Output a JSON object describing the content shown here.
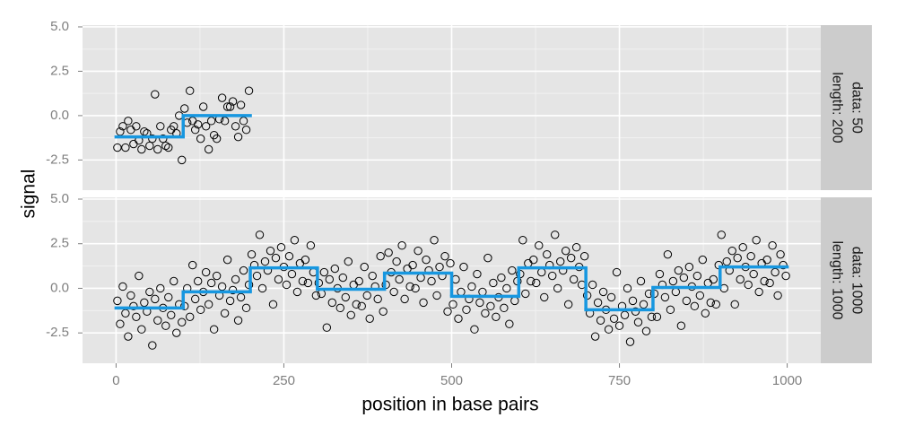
{
  "chart_data": {
    "type": "scatter",
    "xlabel": "position in base pairs",
    "ylabel": "signal",
    "xlim": [
      -50,
      1050
    ],
    "xticks": [
      0,
      250,
      500,
      750,
      1000
    ],
    "ylim": [
      -4.2,
      5.1
    ],
    "yticks": [
      {
        "value": -2.5,
        "label": "-2.5"
      },
      {
        "value": 0,
        "label": "0.0"
      },
      {
        "value": 2.5,
        "label": "2.5"
      },
      {
        "value": 5,
        "label": "5.0"
      }
    ],
    "grid": true,
    "point_color": "#000000",
    "panels": [
      {
        "label": [
          "data: 50",
          "length: 200"
        ],
        "x": [
          2,
          6,
          10,
          14,
          18,
          22,
          26,
          30,
          34,
          38,
          42,
          46,
          50,
          54,
          58,
          62,
          66,
          70,
          74,
          78,
          82,
          86,
          90,
          94,
          98,
          102,
          106,
          110,
          114,
          118,
          122,
          126,
          130,
          134,
          138,
          142,
          146,
          150,
          154,
          158,
          162,
          166,
          170,
          174,
          178,
          182,
          186,
          190,
          194,
          198
        ],
        "values": [
          -1.8,
          -0.9,
          -0.6,
          -1.8,
          -0.3,
          -0.8,
          -1.6,
          -0.6,
          -1.4,
          -1.9,
          -0.9,
          -1.0,
          -1.7,
          -1.3,
          1.2,
          -1.9,
          -0.6,
          -1.3,
          -1.7,
          -1.8,
          -0.8,
          -0.6,
          -1.0,
          0.0,
          -2.5,
          0.4,
          -0.4,
          1.4,
          -0.3,
          -0.8,
          -0.5,
          -1.3,
          0.5,
          -0.6,
          -1.9,
          -0.3,
          -1.1,
          -1.3,
          -0.2,
          1.0,
          -0.3,
          0.5,
          0.5,
          0.8,
          -0.6,
          -1.2,
          0.6,
          -0.3,
          -0.8,
          1.4
        ],
        "steps": {
          "color": "#1797e0",
          "start": [
            0,
            100
          ],
          "end": [
            100,
            200
          ],
          "values": [
            -1.2,
            0.0
          ]
        }
      },
      {
        "label": [
          "data: 1000",
          "length: 1000"
        ],
        "x": [
          2,
          6,
          10,
          14,
          18,
          22,
          26,
          30,
          34,
          38,
          42,
          46,
          50,
          54,
          58,
          62,
          66,
          70,
          74,
          78,
          82,
          86,
          90,
          94,
          98,
          102,
          106,
          110,
          114,
          118,
          122,
          126,
          130,
          134,
          138,
          142,
          146,
          150,
          154,
          158,
          162,
          166,
          170,
          174,
          178,
          182,
          186,
          190,
          194,
          198,
          202,
          206,
          210,
          214,
          218,
          222,
          226,
          230,
          234,
          238,
          242,
          246,
          250,
          254,
          258,
          262,
          266,
          270,
          274,
          278,
          282,
          286,
          290,
          294,
          298,
          302,
          306,
          310,
          314,
          318,
          322,
          326,
          330,
          334,
          338,
          342,
          346,
          350,
          354,
          358,
          362,
          366,
          370,
          374,
          378,
          382,
          386,
          390,
          394,
          398,
          402,
          406,
          410,
          414,
          418,
          422,
          426,
          430,
          434,
          438,
          442,
          446,
          450,
          454,
          458,
          462,
          466,
          470,
          474,
          478,
          482,
          486,
          490,
          494,
          498,
          502,
          506,
          510,
          514,
          518,
          522,
          526,
          530,
          534,
          538,
          542,
          546,
          550,
          554,
          558,
          562,
          566,
          570,
          574,
          578,
          582,
          586,
          590,
          594,
          598,
          602,
          606,
          610,
          614,
          618,
          622,
          626,
          630,
          634,
          638,
          642,
          646,
          650,
          654,
          658,
          662,
          666,
          670,
          674,
          678,
          682,
          686,
          690,
          694,
          698,
          702,
          706,
          710,
          714,
          718,
          722,
          726,
          730,
          734,
          738,
          742,
          746,
          750,
          754,
          758,
          762,
          766,
          770,
          774,
          778,
          782,
          786,
          790,
          794,
          798,
          802,
          806,
          810,
          814,
          818,
          822,
          826,
          830,
          834,
          838,
          842,
          846,
          850,
          854,
          858,
          862,
          866,
          870,
          874,
          878,
          882,
          886,
          890,
          894,
          898,
          902,
          906,
          910,
          914,
          918,
          922,
          926,
          930,
          934,
          938,
          942,
          946,
          950,
          954,
          958,
          962,
          966,
          970,
          974,
          978,
          982,
          986,
          990,
          994,
          998
        ],
        "values": [
          -0.7,
          -2.0,
          0.1,
          -1.4,
          -2.7,
          -0.4,
          -1.0,
          -1.6,
          0.7,
          -2.3,
          -0.8,
          -1.3,
          -0.2,
          -3.2,
          -0.6,
          -1.8,
          0.0,
          -1.1,
          -2.1,
          -0.5,
          -1.5,
          0.4,
          -2.5,
          -0.9,
          -1.9,
          -1.0,
          0.0,
          -1.6,
          1.3,
          -0.6,
          0.4,
          -1.2,
          -0.2,
          0.9,
          -0.9,
          0.3,
          -2.3,
          0.7,
          -0.4,
          0.1,
          -1.4,
          1.6,
          -0.7,
          -0.1,
          0.5,
          -1.8,
          -0.5,
          1.0,
          -1.1,
          0.2,
          1.9,
          1.3,
          0.7,
          3.0,
          0.0,
          1.5,
          1.0,
          2.1,
          -0.9,
          1.7,
          0.5,
          2.3,
          1.2,
          0.2,
          1.8,
          0.8,
          2.7,
          -0.2,
          1.4,
          0.4,
          1.6,
          0.3,
          2.4,
          0.9,
          -0.4,
          0.3,
          -0.3,
          0.9,
          -2.2,
          0.5,
          -0.8,
          1.1,
          0.0,
          -1.1,
          0.6,
          -0.5,
          1.5,
          -1.5,
          0.2,
          -0.9,
          0.4,
          -1.0,
          1.2,
          -0.4,
          -1.7,
          0.7,
          0.1,
          -0.6,
          1.8,
          -1.3,
          0.2,
          2.0,
          0.9,
          -0.2,
          1.5,
          0.5,
          2.4,
          -0.6,
          1.1,
          0.1,
          1.3,
          0.0,
          2.1,
          0.6,
          -0.8,
          1.6,
          1.0,
          0.4,
          2.7,
          -0.4,
          1.2,
          0.7,
          1.8,
          -1.3,
          1.4,
          -0.9,
          0.5,
          -1.7,
          -0.2,
          1.2,
          -1.2,
          -0.6,
          0.1,
          -2.3,
          0.8,
          -0.8,
          -0.2,
          -1.4,
          1.7,
          -1.0,
          0.3,
          -1.6,
          -0.5,
          0.6,
          -1.1,
          0.0,
          -2.0,
          1.0,
          -0.7,
          0.4,
          0.8,
          2.7,
          -0.3,
          1.4,
          0.4,
          1.6,
          0.3,
          2.4,
          0.9,
          -0.5,
          1.9,
          1.3,
          0.7,
          3.0,
          0.0,
          1.5,
          1.0,
          2.1,
          -0.9,
          1.7,
          0.5,
          2.3,
          1.2,
          0.2,
          1.8,
          -0.4,
          -1.4,
          0.2,
          -2.7,
          -0.8,
          -1.8,
          -0.2,
          -1.2,
          -2.3,
          -0.5,
          -1.7,
          0.9,
          -2.1,
          -1.0,
          -1.5,
          0.0,
          -3.0,
          -0.7,
          -1.3,
          -1.9,
          0.4,
          -0.9,
          -2.4,
          -0.3,
          -1.6,
          -0.3,
          -1.6,
          0.8,
          0.2,
          -0.5,
          1.9,
          -1.2,
          0.4,
          -0.2,
          1.0,
          -2.1,
          0.6,
          -0.7,
          1.2,
          0.1,
          -1.0,
          0.7,
          -0.4,
          1.6,
          -1.4,
          0.3,
          -0.8,
          0.5,
          -0.9,
          1.3,
          3.0,
          0.0,
          1.5,
          1.0,
          2.1,
          -0.9,
          1.7,
          0.5,
          2.3,
          1.2,
          0.2,
          1.8,
          0.8,
          2.7,
          -0.2,
          1.4,
          0.4,
          1.6,
          0.3,
          2.4,
          0.9,
          -0.4,
          1.9,
          1.3,
          0.7
        ],
        "steps": {
          "color": "#1797e0",
          "start": [
            0,
            100,
            200,
            300,
            400,
            500,
            600,
            700,
            800,
            900
          ],
          "end": [
            100,
            200,
            300,
            400,
            500,
            600,
            700,
            800,
            900,
            1000
          ],
          "values": [
            -1.1,
            -0.2,
            1.15,
            -0.05,
            0.85,
            -0.45,
            1.15,
            -1.2,
            0.05,
            1.2
          ]
        }
      }
    ]
  }
}
